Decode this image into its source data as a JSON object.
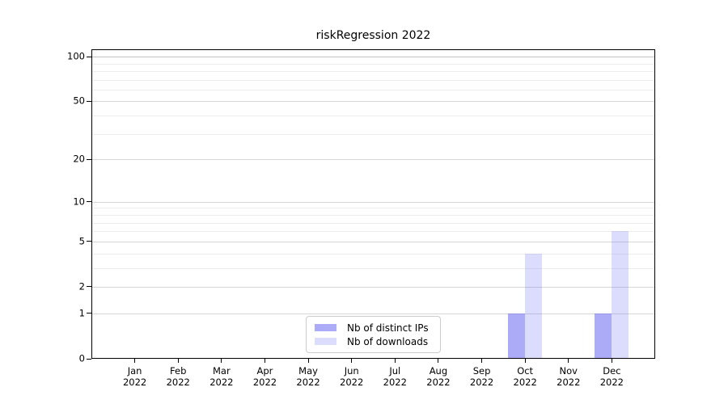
{
  "chart_data": {
    "type": "bar",
    "title": "riskRegression 2022",
    "xlabel": "",
    "ylabel": "",
    "year": "2022",
    "categories": [
      "Jan",
      "Feb",
      "Mar",
      "Apr",
      "May",
      "Jun",
      "Jul",
      "Aug",
      "Sep",
      "Oct",
      "Nov",
      "Dec"
    ],
    "series": [
      {
        "name": "Nb of distinct IPs",
        "color": "rgba(102,102,241,0.55)",
        "values": [
          0,
          0,
          0,
          0,
          0,
          0,
          0,
          0,
          0,
          1,
          0,
          1
        ]
      },
      {
        "name": "Nb of downloads",
        "color": "rgba(102,102,241,0.23)",
        "values": [
          0,
          0,
          0,
          0,
          0,
          0,
          0,
          0,
          0,
          4,
          0,
          6
        ]
      }
    ],
    "y_axis": {
      "scale": "log10(1+y)",
      "major_ticks": [
        0,
        1,
        2,
        5,
        10,
        20,
        50,
        100
      ],
      "minor_gridlines": [
        3,
        4,
        6,
        7,
        8,
        9,
        30,
        40,
        60,
        70,
        80,
        90
      ],
      "top_value": 112,
      "ylim": [
        0,
        112
      ]
    },
    "grid": true,
    "legend_position": "bottom-center"
  }
}
